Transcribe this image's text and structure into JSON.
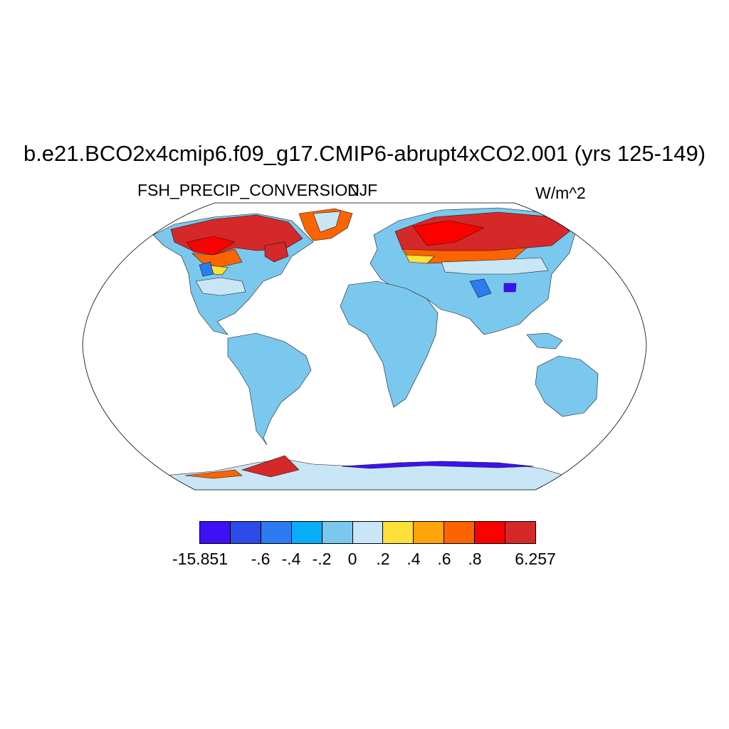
{
  "title": "b.e21.BCO2x4cmip6.f09_g17.CMIP6-abrupt4xCO2.001 (yrs 125-149)",
  "left_subtitle": "FSH_PRECIP_CONVERSION",
  "center_subtitle": "DJF",
  "units": "W/m^2",
  "colorbar": {
    "colors": [
      "#3d10f5",
      "#2c4be8",
      "#2c7bf0",
      "#0aaef8",
      "#7ac8ee",
      "#c8e6f6",
      "#fce038",
      "#fca40a",
      "#fc6400",
      "#fc0000",
      "#d52828"
    ],
    "labels": [
      "-15.851",
      "-.6",
      "-.4",
      "-.2",
      "0",
      ".2",
      ".4",
      ".6",
      ".8",
      "6.257"
    ],
    "min": -15.851,
    "max": 6.257
  },
  "map_colors": {
    "land": "#7ac8ee",
    "near_zero": "#c8e6f6",
    "warm_high": "#d52828",
    "warm": "#fc0000",
    "orange": "#fc6400",
    "amber": "#fca40a",
    "yellow": "#fce038",
    "blue": "#2c7bf0",
    "violet": "#3d10f5"
  },
  "projection": "Robinson"
}
